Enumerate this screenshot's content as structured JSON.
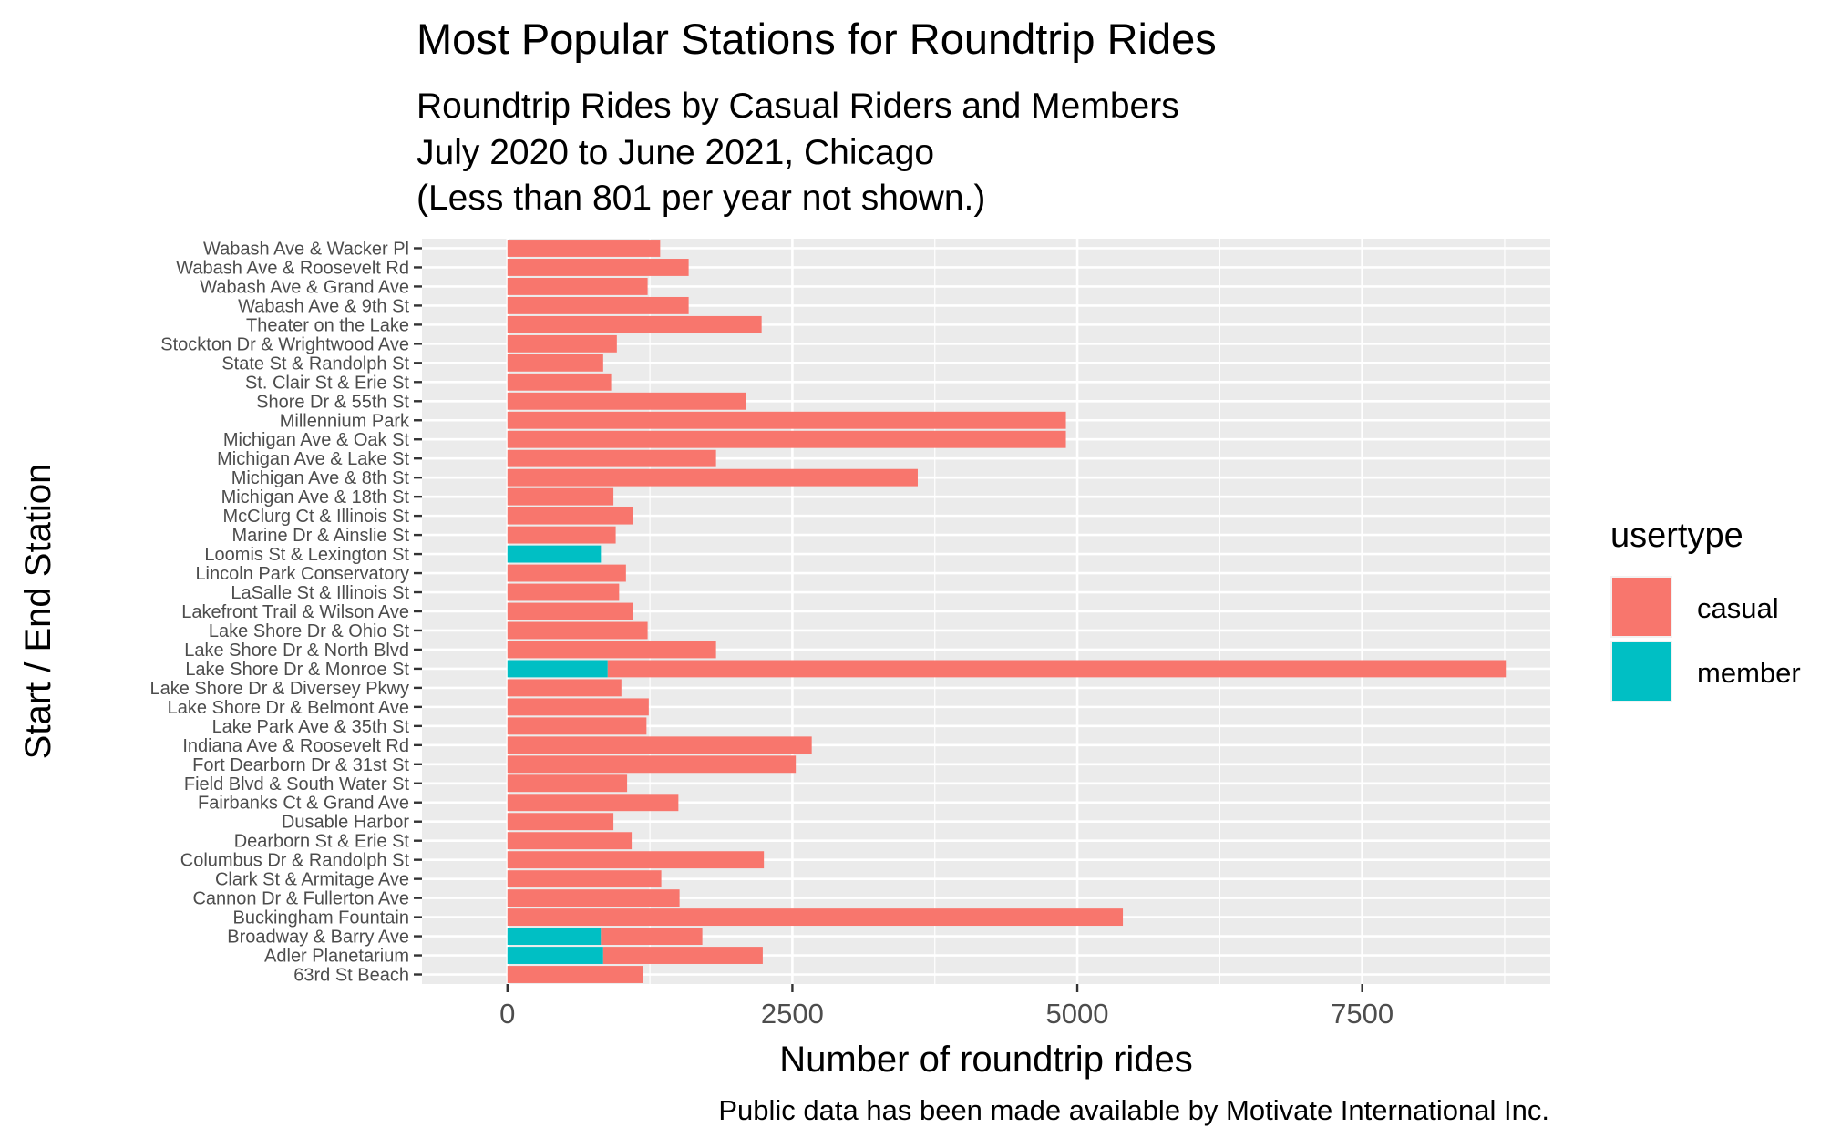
{
  "chart_data": {
    "type": "bar",
    "orientation": "horizontal",
    "stacked": true,
    "title": "Most Popular Stations for Roundtrip Rides",
    "subtitle_lines": [
      "Roundtrip Rides by Casual Riders and Members",
      "July 2020 to June 2021, Chicago",
      "(Less than 801 per year not shown.)"
    ],
    "caption": "Public data has been made available by Motivate International Inc.",
    "xlabel": "Number of roundtrip rides",
    "ylabel": "Start / End Station",
    "xlim": [
      -750,
      9150
    ],
    "x_ticks": [
      0,
      2500,
      5000,
      7500
    ],
    "x_tick_labels": [
      "0",
      "2500",
      "5000",
      "7500"
    ],
    "grid": true,
    "legend": {
      "title": "usertype",
      "position": "right",
      "entries": [
        {
          "label": "casual",
          "color": "#F8766D"
        },
        {
          "label": "member",
          "color": "#00BFC4"
        }
      ]
    },
    "categories": [
      "63rd St Beach",
      "Adler Planetarium",
      "Broadway & Barry Ave",
      "Buckingham Fountain",
      "Cannon Dr & Fullerton Ave",
      "Clark St & Armitage Ave",
      "Columbus Dr & Randolph St",
      "Dearborn St & Erie St",
      "Dusable Harbor",
      "Fairbanks Ct & Grand Ave",
      "Field Blvd & South Water St",
      "Fort Dearborn Dr & 31st St",
      "Indiana Ave & Roosevelt Rd",
      "Lake Park Ave & 35th St",
      "Lake Shore Dr & Belmont Ave",
      "Lake Shore Dr & Diversey Pkwy",
      "Lake Shore Dr & Monroe St",
      "Lake Shore Dr & North Blvd",
      "Lake Shore Dr & Ohio St",
      "Lakefront Trail & Wilson Ave",
      "LaSalle St & Illinois St",
      "Lincoln Park Conservatory",
      "Loomis St & Lexington St",
      "Marine Dr & Ainslie St",
      "McClurg Ct & Illinois St",
      "Michigan Ave & 18th St",
      "Michigan Ave & 8th St",
      "Michigan Ave & Lake St",
      "Michigan Ave & Oak St",
      "Millennium Park",
      "Shore Dr & 55th St",
      "St. Clair St & Erie St",
      "State St & Randolph St",
      "Stockton Dr & Wrightwood Ave",
      "Theater on the Lake",
      "Wabash Ave & 9th St",
      "Wabash Ave & Grand Ave",
      "Wabash Ave & Roosevelt Rd",
      "Wabash Ave & Wacker Pl"
    ],
    "series": [
      {
        "name": "casual",
        "color": "#F8766D",
        "values": [
          1190,
          1400,
          890,
          5400,
          1510,
          1350,
          2250,
          1090,
          930,
          1500,
          1050,
          2530,
          2670,
          1220,
          1240,
          1000,
          7880,
          1830,
          1230,
          1100,
          980,
          1040,
          0,
          950,
          1100,
          930,
          3600,
          1830,
          4900,
          4900,
          2090,
          910,
          840,
          960,
          2230,
          1590,
          1230,
          1590,
          1340
        ]
      },
      {
        "name": "member",
        "color": "#00BFC4",
        "values": [
          0,
          840,
          820,
          0,
          0,
          0,
          0,
          0,
          0,
          0,
          0,
          0,
          0,
          0,
          0,
          0,
          880,
          0,
          0,
          0,
          0,
          0,
          820,
          0,
          0,
          0,
          0,
          0,
          0,
          0,
          0,
          0,
          0,
          0,
          0,
          0,
          0,
          0,
          0
        ]
      }
    ]
  }
}
